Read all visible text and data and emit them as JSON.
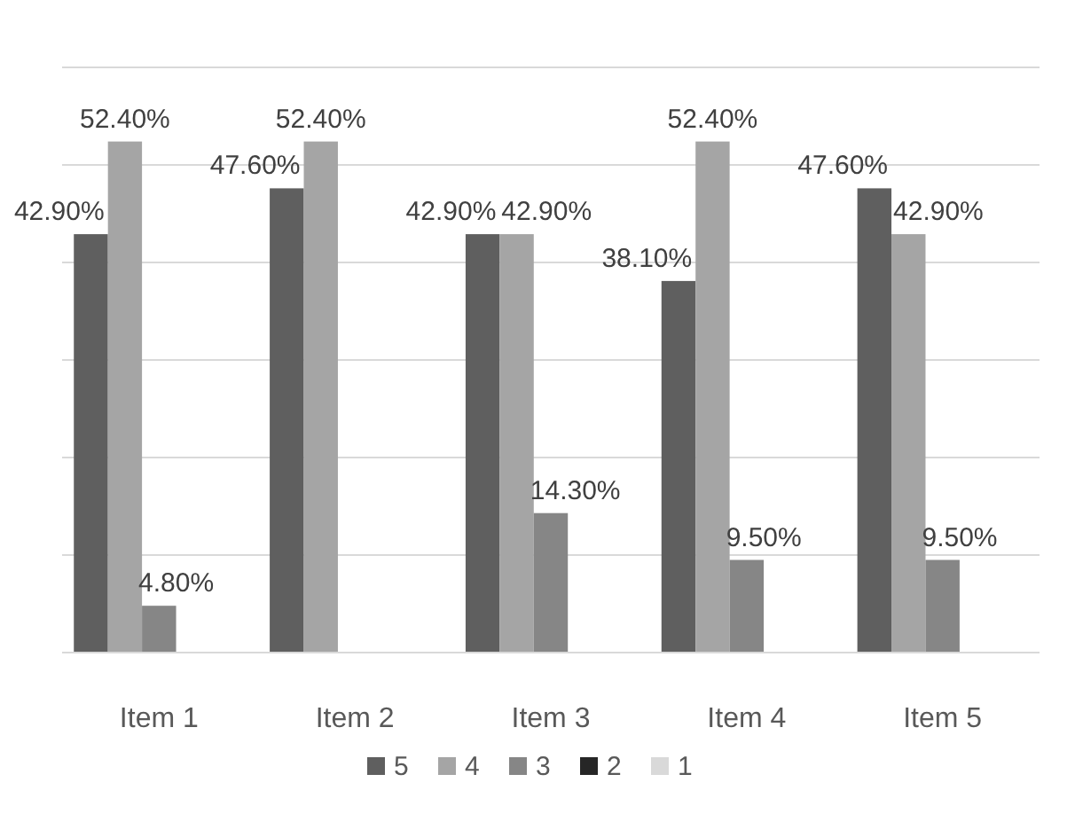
{
  "chart_data": {
    "type": "bar",
    "categories": [
      "Item 1",
      "Item 2",
      "Item 3",
      "Item 4",
      "Item 5"
    ],
    "series": [
      {
        "name": "5",
        "color": "#5f5f5f",
        "values": [
          42.9,
          47.6,
          42.9,
          38.1,
          47.6
        ],
        "value_labels": [
          "42.90%",
          "47.60%",
          "42.90%",
          "38.10%",
          "47.60%"
        ]
      },
      {
        "name": "4",
        "color": "#a5a5a5",
        "values": [
          52.4,
          52.4,
          42.9,
          52.4,
          42.9
        ],
        "value_labels": [
          "52.40%",
          "52.40%",
          "42.90%",
          "52.40%",
          "42.90%"
        ]
      },
      {
        "name": "3",
        "color": "#868686",
        "values": [
          4.8,
          null,
          14.3,
          9.5,
          9.5
        ],
        "value_labels": [
          "4.80%",
          null,
          "14.30%",
          "9.50%",
          "9.50%"
        ]
      },
      {
        "name": "2",
        "color": "#262626",
        "values": [
          null,
          null,
          null,
          null,
          null
        ]
      },
      {
        "name": "1",
        "color": "#d9d9d9",
        "values": [
          null,
          null,
          null,
          null,
          null
        ]
      }
    ],
    "ylim": [
      0,
      60
    ],
    "yticks": [
      {
        "value": 0,
        "label": null
      },
      {
        "value": 10,
        "label": null
      },
      {
        "value": 20,
        "label": null
      },
      {
        "value": 30,
        "label": null
      },
      {
        "value": 40,
        "label": null
      },
      {
        "value": 50,
        "label": null
      },
      {
        "value": 60,
        "label": null
      }
    ],
    "tick_labels": "x",
    "grid": "y",
    "legend": "bottom"
  }
}
